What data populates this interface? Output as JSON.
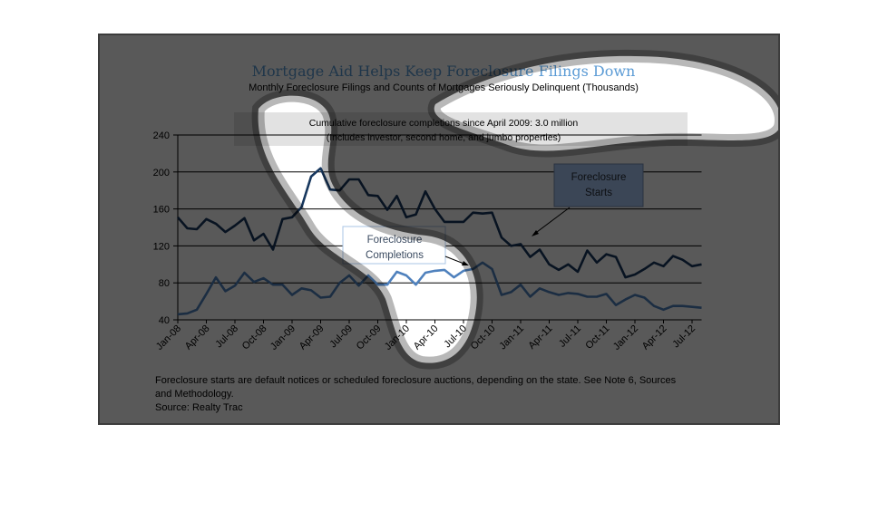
{
  "chart_data": {
    "type": "line",
    "title": "Mortgage Aid Helps Keep Foreclosure Filings Down",
    "subtitle": "Monthly Foreclosure Filings and Counts of Mortgages Seriously Delinquent (Thousands)",
    "annotation_box": {
      "line1": "Cumulative foreclosure completions since April 2009: 3.0 million",
      "line2": "(Includes investor, second home, and jumbo properties)"
    },
    "ylim": [
      40,
      240
    ],
    "yticks": [
      "40",
      "80",
      "120",
      "160",
      "200",
      "240"
    ],
    "ytick_values": [
      40,
      80,
      120,
      160,
      200,
      240
    ],
    "xtick_labels": [
      "Jan-08",
      "Apr-08",
      "Jul-08",
      "Oct-08",
      "Jan-09",
      "Apr-09",
      "Jul-09",
      "Oct-09",
      "Jan-10",
      "Apr-10",
      "Jul-10",
      "Oct-10",
      "Jan-11",
      "Apr-11",
      "Jul-11",
      "Oct-11",
      "Jan-12",
      "Apr-12",
      "Jul-12"
    ],
    "months_count": 56,
    "grid": true,
    "series": [
      {
        "name": "Foreclosure Starts",
        "label_line1": "Foreclosure",
        "label_line2": "Starts",
        "color": "#17375e",
        "values": [
          151,
          139,
          138,
          149,
          144,
          135,
          142,
          150,
          126,
          133,
          116,
          149,
          151,
          162,
          195,
          204,
          181,
          180,
          192,
          192,
          175,
          174,
          159,
          174,
          151,
          154,
          179,
          160,
          146,
          146,
          146,
          156,
          155,
          156,
          129,
          120,
          122,
          108,
          116,
          100,
          94,
          100,
          92,
          115,
          102,
          111,
          108,
          86,
          89,
          95,
          102,
          98,
          109,
          105,
          98,
          100
        ]
      },
      {
        "name": "Foreclosure Completions",
        "label_line1": "Foreclosure",
        "label_line2": "Completions",
        "color": "#4f81bd",
        "values": [
          46,
          47,
          51,
          68,
          86,
          71,
          77,
          91,
          81,
          85,
          78,
          78,
          67,
          74,
          72,
          64,
          65,
          80,
          88,
          77,
          88,
          78,
          78,
          92,
          88,
          78,
          91,
          93,
          94,
          86,
          93,
          95,
          102,
          95,
          67,
          70,
          78,
          65,
          74,
          70,
          67,
          69,
          68,
          65,
          65,
          68,
          56,
          62,
          67,
          64,
          55,
          51,
          55,
          55,
          54,
          53
        ]
      }
    ],
    "footnote_line1": "Foreclosure starts are default notices or scheduled foreclosure auctions, depending on the state. See Note 6, Sources",
    "footnote_line2": "and Methodology.",
    "source": "Source: Realty Trac"
  }
}
